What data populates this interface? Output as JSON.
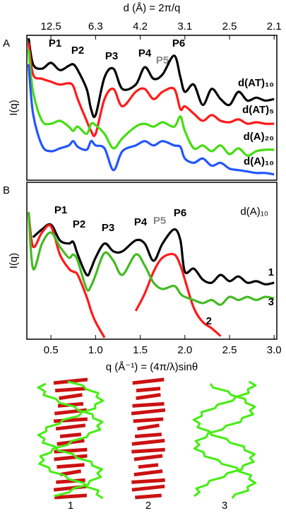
{
  "chart_data": [
    {
      "type": "line",
      "panel_label": "A",
      "x2label": "d (Å) = 2π/q",
      "ylabel": "I(q)",
      "x": [
        0.25,
        0.3,
        0.4,
        0.5,
        0.6,
        0.7,
        0.75,
        0.8,
        0.9,
        0.95,
        1.0,
        1.1,
        1.2,
        1.3,
        1.45,
        1.55,
        1.65,
        1.75,
        1.88,
        1.95,
        2.0,
        2.1,
        2.2,
        2.3,
        2.4,
        2.5,
        2.6,
        2.7,
        2.8,
        2.9,
        3.0
      ],
      "xlim": [
        0.23,
        3.03
      ],
      "ylim": [
        0,
        100
      ],
      "x2ticks": [
        {
          "value": 0.5,
          "label": "12.5"
        },
        {
          "value": 1,
          "label": "6.3"
        },
        {
          "value": 1.5,
          "label": "4.2"
        },
        {
          "value": 2,
          "label": "3.1"
        },
        {
          "value": 2.5,
          "label": "2.5"
        },
        {
          "value": 3,
          "label": "2.1"
        }
      ],
      "peaks": [
        {
          "label": "P1"
        },
        {
          "label": "P2"
        },
        {
          "label": "P3"
        },
        {
          "label": "P4"
        },
        {
          "label": "P5",
          "color": "#888888"
        },
        {
          "label": "P6"
        }
      ],
      "series": [
        {
          "name": "d(AT)₁₀",
          "color": "#000000",
          "values": [
            98,
            80,
            77,
            81,
            76,
            79,
            80,
            76,
            63,
            49,
            45,
            71,
            77,
            63,
            66,
            78,
            70,
            73,
            86,
            71,
            61,
            66,
            52,
            63,
            56,
            52,
            61,
            55,
            57,
            55,
            56
          ]
        },
        {
          "name": "d(AT)₅",
          "color": "#ff1a1a",
          "values": [
            95,
            73,
            70,
            68,
            66,
            67,
            65,
            56,
            41,
            34,
            32,
            56,
            63,
            51,
            61,
            63,
            56,
            61,
            63,
            49,
            51,
            46,
            41,
            45,
            41,
            40,
            42,
            39,
            40,
            39,
            39
          ]
        },
        {
          "name": "d(A)₂₀",
          "color": "#44dd11",
          "values": [
            90,
            61,
            41,
            39,
            41,
            37,
            34,
            37,
            32,
            39,
            38,
            32,
            22,
            29,
            37,
            39,
            37,
            40,
            37,
            44,
            34,
            22,
            24,
            20,
            24,
            18,
            22,
            17,
            20,
            21,
            21
          ]
        },
        {
          "name": "d(A)₁₀",
          "color": "#2255ff",
          "values": [
            80,
            46,
            24,
            20,
            22,
            24,
            27,
            23,
            21,
            27,
            24,
            22,
            7,
            20,
            24,
            27,
            24,
            27,
            24,
            23,
            15,
            12,
            15,
            10,
            12,
            8,
            7,
            6,
            5,
            5,
            4
          ]
        }
      ]
    },
    {
      "type": "line",
      "panel_label": "B",
      "xlabel": "q (Å⁻¹) = (4π/λ)sinθ",
      "ylabel": "I(q)",
      "annotation": "d(A)₁₀",
      "x": [
        0.25,
        0.3,
        0.4,
        0.5,
        0.6,
        0.7,
        0.75,
        0.8,
        0.9,
        0.95,
        1.0,
        1.1,
        1.2,
        1.3,
        1.45,
        1.55,
        1.65,
        1.75,
        1.88,
        1.95,
        2.0,
        2.1,
        2.2,
        2.3,
        2.4,
        2.5,
        2.6,
        2.7,
        2.8,
        2.9,
        3.0
      ],
      "xlim": [
        0.23,
        3.03
      ],
      "ylim": [
        0,
        100
      ],
      "xticks": [
        0.5,
        {
          "value": 1,
          "label": "1.0"
        },
        1.5,
        {
          "value": 2,
          "label": "2.0"
        },
        2.5,
        {
          "value": 3,
          "label": "3.0"
        }
      ],
      "peaks": [
        {
          "label": "P1"
        },
        {
          "label": "P2"
        },
        {
          "label": "P3"
        },
        {
          "label": "P4"
        },
        {
          "label": "P5",
          "color": "#888888"
        },
        {
          "label": "P6"
        }
      ],
      "series": [
        {
          "name": "1",
          "color": "#000000",
          "values": [
            null,
            65,
            70,
            73,
            63,
            61,
            62,
            54,
            41,
            45,
            52,
            61,
            56,
            56,
            63,
            61,
            50,
            61,
            70,
            63,
            43,
            45,
            38,
            36,
            41,
            37,
            40,
            36,
            37,
            35,
            36
          ]
        },
        {
          "name": "2",
          "color": "#ff1a1a",
          "values": [
            81,
            59,
            68,
            72,
            54,
            45,
            43,
            41,
            27,
            18,
            11,
            1,
            null,
            null,
            18,
            29,
            43,
            52,
            54,
            47,
            38,
            20,
            11,
            7,
            2,
            null,
            null,
            null,
            null,
            null,
            null
          ]
        },
        {
          "name": "3",
          "color": "#44bb22",
          "values": [
            81,
            45,
            61,
            68,
            59,
            52,
            54,
            50,
            32,
            34,
            41,
            55,
            50,
            41,
            54,
            47,
            36,
            32,
            34,
            29,
            27,
            25,
            23,
            25,
            22,
            27,
            25,
            27,
            25,
            27,
            26
          ]
        }
      ]
    }
  ],
  "structures": {
    "labels": [
      "1",
      "2",
      "3"
    ]
  }
}
